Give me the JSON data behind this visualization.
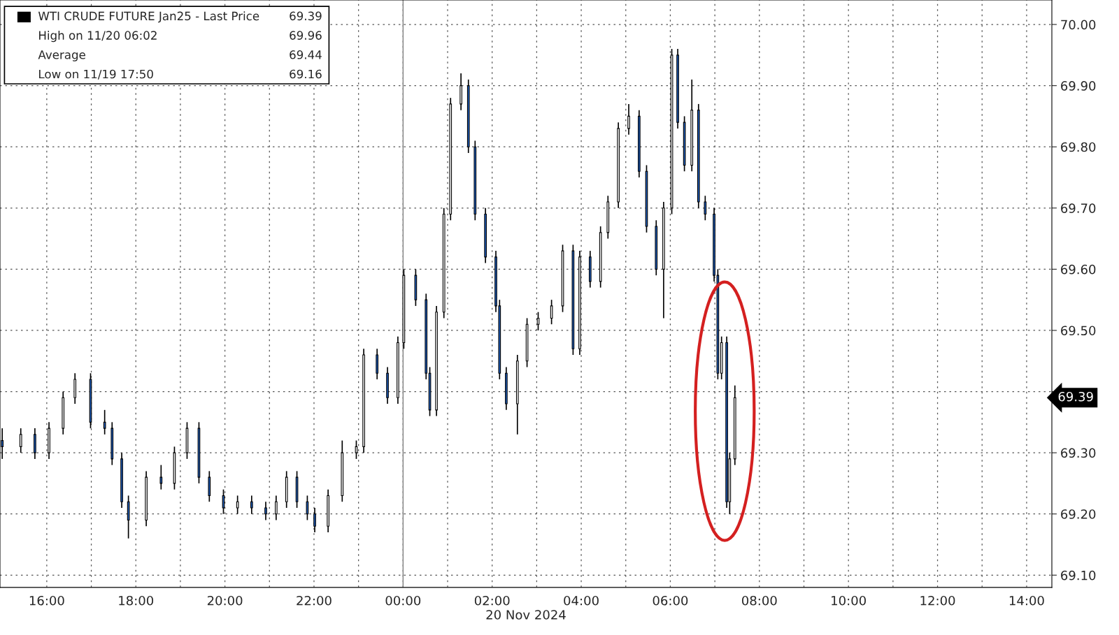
{
  "chart_data": {
    "type": "candlestick",
    "xlabel": "20 Nov 2024",
    "x": [
      "2024-11-19T15:00",
      "2024-11-19T15:25",
      "2024-11-19T15:44",
      "2024-11-19T16:03",
      "2024-11-19T16:22",
      "2024-11-19T16:38",
      "2024-11-19T16:59",
      "2024-11-19T17:18",
      "2024-11-19T17:28",
      "2024-11-19T17:41",
      "2024-11-19T17:50",
      "2024-11-19T18:14",
      "2024-11-19T18:34",
      "2024-11-19T18:52",
      "2024-11-19T19:09",
      "2024-11-19T19:25",
      "2024-11-19T19:39",
      "2024-11-19T19:58",
      "2024-11-19T20:17",
      "2024-11-19T20:36",
      "2024-11-19T20:55",
      "2024-11-19T21:09",
      "2024-11-19T21:23",
      "2024-11-19T21:37",
      "2024-11-19T21:51",
      "2024-11-19T22:01",
      "2024-11-19T22:19",
      "2024-11-19T22:38",
      "2024-11-19T22:57",
      "2024-11-19T23:07",
      "2024-11-19T23:25",
      "2024-11-19T23:39",
      "2024-11-19T23:53",
      "2024-11-20T00:01",
      "2024-11-20T00:17",
      "2024-11-20T00:31",
      "2024-11-20T00:36",
      "2024-11-20T00:45",
      "2024-11-20T00:55",
      "2024-11-20T01:04",
      "2024-11-20T01:18",
      "2024-11-20T01:28",
      "2024-11-20T01:37",
      "2024-11-20T01:51",
      "2024-11-20T02:05",
      "2024-11-20T02:10",
      "2024-11-20T02:19",
      "2024-11-20T02:34",
      "2024-11-20T02:47",
      "2024-11-20T03:02",
      "2024-11-20T03:20",
      "2024-11-20T03:35",
      "2024-11-20T03:49",
      "2024-11-20T03:58",
      "2024-11-20T04:12",
      "2024-11-20T04:26",
      "2024-11-20T04:36",
      "2024-11-20T04:50",
      "2024-11-20T05:04",
      "2024-11-20T05:18",
      "2024-11-20T05:28",
      "2024-11-20T05:41",
      "2024-11-20T05:51",
      "2024-11-20T06:02",
      "2024-11-20T06:10",
      "2024-11-20T06:19",
      "2024-11-20T06:29",
      "2024-11-20T06:38",
      "2024-11-20T06:47",
      "2024-11-20T06:59",
      "2024-11-20T07:04",
      "2024-11-20T07:09",
      "2024-11-20T07:16",
      "2024-11-20T07:20",
      "2024-11-20T07:27"
    ],
    "ohlc": [
      [
        69.32,
        69.34,
        69.29,
        69.31
      ],
      [
        69.31,
        69.34,
        69.3,
        69.33
      ],
      [
        69.33,
        69.34,
        69.29,
        69.3
      ],
      [
        69.3,
        69.35,
        69.29,
        69.34
      ],
      [
        69.34,
        69.4,
        69.33,
        69.39
      ],
      [
        69.39,
        69.43,
        69.38,
        69.42
      ],
      [
        69.42,
        69.43,
        69.34,
        69.35
      ],
      [
        69.35,
        69.37,
        69.33,
        69.34
      ],
      [
        69.34,
        69.35,
        69.28,
        69.29
      ],
      [
        69.29,
        69.3,
        69.21,
        69.22
      ],
      [
        69.22,
        69.23,
        69.16,
        69.19
      ],
      [
        69.19,
        69.27,
        69.18,
        69.26
      ],
      [
        69.26,
        69.28,
        69.24,
        69.25
      ],
      [
        69.25,
        69.31,
        69.24,
        69.3
      ],
      [
        69.3,
        69.35,
        69.29,
        69.34
      ],
      [
        69.34,
        69.35,
        69.25,
        69.26
      ],
      [
        69.26,
        69.27,
        69.22,
        69.23
      ],
      [
        69.23,
        69.24,
        69.2,
        69.21
      ],
      [
        69.21,
        69.23,
        69.2,
        69.22
      ],
      [
        69.22,
        69.23,
        69.2,
        69.21
      ],
      [
        69.21,
        69.22,
        69.19,
        69.2
      ],
      [
        69.2,
        69.23,
        69.19,
        69.22
      ],
      [
        69.22,
        69.27,
        69.21,
        69.26
      ],
      [
        69.26,
        69.27,
        69.21,
        69.22
      ],
      [
        69.22,
        69.23,
        69.19,
        69.2
      ],
      [
        69.2,
        69.21,
        69.17,
        69.18
      ],
      [
        69.18,
        69.24,
        69.17,
        69.23
      ],
      [
        69.23,
        69.32,
        69.22,
        69.3
      ],
      [
        69.3,
        69.32,
        69.29,
        69.31
      ],
      [
        69.31,
        69.47,
        69.3,
        69.46
      ],
      [
        69.46,
        69.47,
        69.42,
        69.43
      ],
      [
        69.43,
        69.44,
        69.38,
        69.39
      ],
      [
        69.39,
        69.49,
        69.38,
        69.48
      ],
      [
        69.48,
        69.6,
        69.47,
        69.59
      ],
      [
        69.59,
        69.6,
        69.54,
        69.55
      ],
      [
        69.55,
        69.56,
        69.42,
        69.43
      ],
      [
        69.43,
        69.44,
        69.36,
        69.37
      ],
      [
        69.37,
        69.54,
        69.36,
        69.53
      ],
      [
        69.53,
        69.7,
        69.52,
        69.69
      ],
      [
        69.69,
        69.88,
        69.68,
        69.87
      ],
      [
        69.87,
        69.92,
        69.86,
        69.9
      ],
      [
        69.9,
        69.91,
        69.79,
        69.8
      ],
      [
        69.8,
        69.81,
        69.68,
        69.69
      ],
      [
        69.69,
        69.7,
        69.61,
        69.62
      ],
      [
        69.62,
        69.63,
        69.53,
        69.54
      ],
      [
        69.54,
        69.55,
        69.42,
        69.43
      ],
      [
        69.43,
        69.44,
        69.37,
        69.38
      ],
      [
        69.38,
        69.46,
        69.33,
        69.45
      ],
      [
        69.45,
        69.52,
        69.44,
        69.51
      ],
      [
        69.51,
        69.53,
        69.5,
        69.52
      ],
      [
        69.52,
        69.55,
        69.51,
        69.54
      ],
      [
        69.54,
        69.64,
        69.53,
        69.63
      ],
      [
        69.63,
        69.64,
        69.46,
        69.47
      ],
      [
        69.47,
        69.63,
        69.46,
        69.62
      ],
      [
        69.62,
        69.63,
        69.57,
        69.58
      ],
      [
        69.58,
        69.67,
        69.57,
        69.66
      ],
      [
        69.66,
        69.72,
        69.65,
        69.71
      ],
      [
        69.71,
        69.84,
        69.7,
        69.83
      ],
      [
        69.83,
        69.87,
        69.82,
        69.85
      ],
      [
        69.85,
        69.86,
        69.75,
        69.76
      ],
      [
        69.76,
        69.77,
        69.66,
        69.67
      ],
      [
        69.67,
        69.68,
        69.59,
        69.6
      ],
      [
        69.6,
        69.71,
        69.52,
        69.7
      ],
      [
        69.7,
        69.96,
        69.69,
        69.95
      ],
      [
        69.95,
        69.96,
        69.83,
        69.84
      ],
      [
        69.84,
        69.85,
        69.76,
        69.77
      ],
      [
        69.77,
        69.91,
        69.76,
        69.86
      ],
      [
        69.86,
        69.87,
        69.7,
        69.71
      ],
      [
        69.71,
        69.72,
        69.68,
        69.69
      ],
      [
        69.69,
        69.7,
        69.58,
        69.59
      ],
      [
        69.59,
        69.6,
        69.42,
        69.43
      ],
      [
        69.43,
        69.49,
        69.42,
        69.48
      ],
      [
        69.48,
        69.49,
        69.21,
        69.22
      ],
      [
        69.22,
        69.3,
        69.2,
        69.29
      ],
      [
        69.29,
        69.41,
        69.28,
        69.39
      ]
    ],
    "xlim": [
      "2024-11-19T14:57",
      "2024-11-20T14:34"
    ],
    "xticks": [
      {
        "value": "2024-11-19T16:00",
        "label": "16:00"
      },
      {
        "value": "2024-11-19T17:00",
        "label": null
      },
      {
        "value": "2024-11-19T18:00",
        "label": "18:00"
      },
      {
        "value": "2024-11-19T19:00",
        "label": null
      },
      {
        "value": "2024-11-19T20:00",
        "label": "20:00"
      },
      {
        "value": "2024-11-19T21:00",
        "label": null
      },
      {
        "value": "2024-11-19T22:00",
        "label": "22:00"
      },
      {
        "value": "2024-11-19T23:00",
        "label": null
      },
      {
        "value": "2024-11-20T00:00",
        "label": "00:00"
      },
      {
        "value": "2024-11-20T01:00",
        "label": null
      },
      {
        "value": "2024-11-20T02:00",
        "label": "02:00"
      },
      {
        "value": "2024-11-20T03:00",
        "label": null
      },
      {
        "value": "2024-11-20T04:00",
        "label": "04:00"
      },
      {
        "value": "2024-11-20T05:00",
        "label": null
      },
      {
        "value": "2024-11-20T06:00",
        "label": "06:00"
      },
      {
        "value": "2024-11-20T07:00",
        "label": null
      },
      {
        "value": "2024-11-20T08:00",
        "label": "08:00"
      },
      {
        "value": "2024-11-20T09:00",
        "label": null
      },
      {
        "value": "2024-11-20T10:00",
        "label": "10:00"
      },
      {
        "value": "2024-11-20T11:00",
        "label": null
      },
      {
        "value": "2024-11-20T12:00",
        "label": "12:00"
      },
      {
        "value": "2024-11-20T13:00",
        "label": null
      },
      {
        "value": "2024-11-20T14:00",
        "label": "14:00"
      }
    ],
    "ylim": [
      69.08,
      70.04
    ],
    "yticks": [
      {
        "value": 69.1,
        "label": "69.10"
      },
      {
        "value": 69.2,
        "label": "69.20"
      },
      {
        "value": 69.3,
        "label": "69.30"
      },
      {
        "value": 69.4,
        "label": null
      },
      {
        "value": 69.5,
        "label": "69.50"
      },
      {
        "value": 69.6,
        "label": "69.60"
      },
      {
        "value": 69.7,
        "label": "69.70"
      },
      {
        "value": 69.8,
        "label": "69.80"
      },
      {
        "value": 69.9,
        "label": "69.90"
      },
      {
        "value": 70.0,
        "label": "70.00"
      }
    ],
    "grid": true,
    "ref_lines": [
      {
        "axis": "x",
        "value": "2024-11-20T00:00",
        "color": "#808080",
        "line_style": "solid"
      }
    ],
    "annotations": [
      "WTI CRUDE FUTURE Jan25 - Last Price",
      "69.39",
      "High on 11/20 06:02",
      "69.96",
      "Average",
      "69.44",
      "Low on 11/19 17:50",
      "69.16",
      "69.39"
    ]
  }
}
